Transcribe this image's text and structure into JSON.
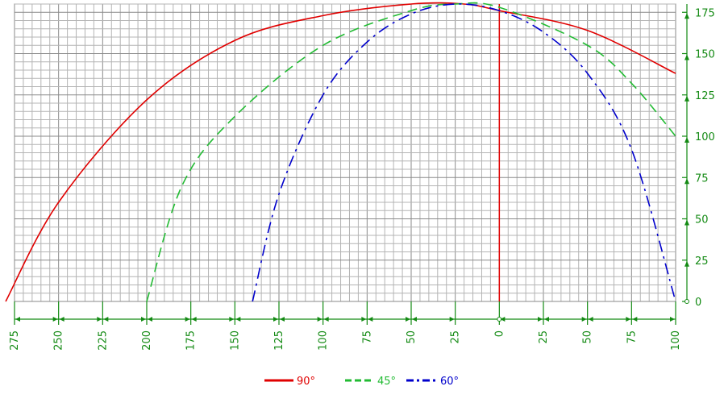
{
  "chart_data": {
    "type": "line",
    "title": "",
    "xlabel": "",
    "ylabel": "",
    "xlim": [
      -275,
      100
    ],
    "ylim": [
      0,
      180
    ],
    "x_axis": {
      "reversed": true,
      "ticks": [
        275,
        250,
        225,
        200,
        175,
        150,
        125,
        100,
        75,
        50,
        25,
        0,
        25,
        50,
        75,
        100
      ],
      "tick_positions": [
        -275,
        -250,
        -225,
        -200,
        -175,
        -150,
        -125,
        -100,
        -75,
        -50,
        -25,
        0,
        25,
        50,
        75,
        100
      ]
    },
    "y_axis": {
      "side": "right",
      "ticks": [
        0,
        25,
        50,
        75,
        100,
        125,
        150,
        175
      ]
    },
    "grid": true,
    "reference_line": {
      "x": 0,
      "color": "#e00000"
    },
    "legend_position": "bottom-center",
    "series": [
      {
        "name": "90°",
        "color": "#e00000",
        "dash": "solid",
        "points": [
          [
            -280,
            0
          ],
          [
            -250,
            60
          ],
          [
            -200,
            122
          ],
          [
            -150,
            158
          ],
          [
            -100,
            173
          ],
          [
            -50,
            180
          ],
          [
            -20,
            180
          ],
          [
            0,
            176
          ],
          [
            50,
            164
          ],
          [
            100,
            138
          ]
        ]
      },
      {
        "name": "45°",
        "color": "#22bb33",
        "dash": "dashed",
        "points": [
          [
            -200,
            0
          ],
          [
            -180,
            70
          ],
          [
            -150,
            112
          ],
          [
            -100,
            155
          ],
          [
            -50,
            176
          ],
          [
            -25,
            180
          ],
          [
            0,
            178
          ],
          [
            50,
            155
          ],
          [
            75,
            132
          ],
          [
            100,
            100
          ]
        ]
      },
      {
        "name": "60°",
        "color": "#0000cc",
        "dash": "dashdot",
        "points": [
          [
            -140,
            0
          ],
          [
            -125,
            65
          ],
          [
            -100,
            125
          ],
          [
            -75,
            157
          ],
          [
            -50,
            174
          ],
          [
            -25,
            180
          ],
          [
            0,
            176
          ],
          [
            25,
            163
          ],
          [
            50,
            138
          ],
          [
            75,
            92
          ],
          [
            100,
            0
          ]
        ]
      }
    ]
  }
}
